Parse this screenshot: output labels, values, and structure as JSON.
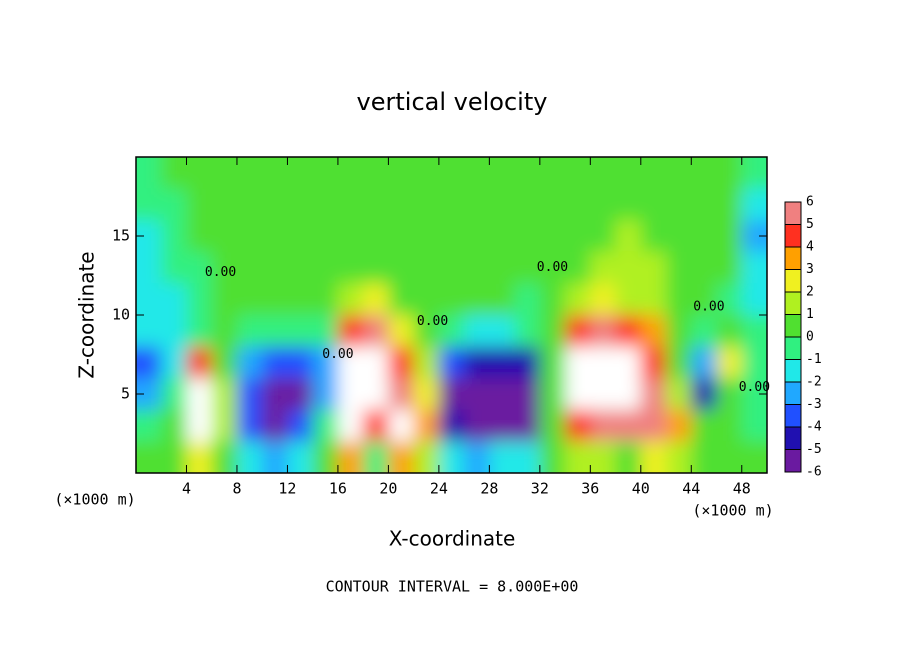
{
  "chart_data": {
    "type": "heatmap",
    "title": "vertical velocity",
    "x_label": "X-coordinate",
    "y_label": "Z-coordinate",
    "x_unit": "(×1000 m)",
    "y_unit": "(×1000 m)",
    "footer": "CONTOUR INTERVAL = 8.000E+00",
    "xlim": [
      0,
      50
    ],
    "ylim": [
      0,
      20
    ],
    "xticks": [
      4,
      8,
      12,
      16,
      20,
      24,
      28,
      32,
      36,
      40,
      44,
      48
    ],
    "yticks": [
      5,
      10,
      15
    ],
    "x": [
      1,
      3,
      5,
      7,
      9,
      11,
      13,
      15,
      17,
      19,
      21,
      23,
      25,
      27,
      29,
      31,
      33,
      35,
      37,
      39,
      41,
      43,
      45,
      47,
      49
    ],
    "y": [
      19,
      17,
      15,
      13,
      11,
      9,
      7,
      5,
      3,
      1
    ],
    "z": [
      [
        -0.5,
        0,
        0,
        0,
        0,
        0,
        0,
        0,
        0,
        0,
        0,
        0,
        0,
        0,
        0,
        0,
        0,
        0,
        0,
        0,
        0,
        0,
        0,
        0,
        -1
      ],
      [
        -1,
        -0.5,
        0,
        0,
        0,
        0,
        0,
        0,
        0,
        0,
        0,
        0,
        0,
        0,
        0,
        0,
        0,
        0,
        0,
        0,
        0,
        0,
        0,
        0,
        -2
      ],
      [
        -2,
        -1,
        0,
        0,
        0,
        0,
        0,
        0,
        0,
        0,
        0,
        0,
        0,
        0,
        0,
        0,
        0,
        0,
        0.5,
        1,
        0.5,
        0,
        0,
        0,
        -3
      ],
      [
        -2,
        -1,
        -0.5,
        0,
        0,
        0,
        0,
        0,
        0,
        0,
        0,
        0,
        0,
        0,
        0,
        0,
        0,
        0.5,
        1,
        1,
        1,
        0,
        0,
        0,
        -2
      ],
      [
        -2,
        -1.5,
        -1,
        0,
        0,
        0,
        0,
        0,
        1,
        2,
        0.5,
        0,
        0,
        0,
        0,
        -0.5,
        0,
        1.5,
        2,
        1.5,
        1,
        0,
        0,
        -0.5,
        -2
      ],
      [
        -2,
        -1.5,
        -1,
        0,
        -0.5,
        -1,
        -1,
        -0.5,
        4,
        5,
        2,
        0,
        -1,
        -1.5,
        -1.5,
        -1,
        0,
        4,
        5,
        4,
        3,
        0,
        -1,
        0,
        -1
      ],
      [
        -4,
        -2,
        4,
        0,
        -3,
        -4,
        -4,
        -3,
        6,
        6,
        4,
        1,
        -4,
        -5,
        -5,
        -5,
        0,
        6,
        6,
        6,
        4,
        0,
        -3,
        2,
        -1
      ],
      [
        -3,
        -1,
        6,
        1,
        -4,
        -6,
        -6,
        -3,
        6,
        6,
        5,
        2,
        -6,
        -6,
        -6,
        -6,
        0,
        6,
        6,
        6,
        5,
        1,
        -5,
        0,
        -1
      ],
      [
        -1,
        0,
        6,
        1,
        -4,
        -6,
        -4,
        -1,
        6,
        4,
        6,
        3,
        -5,
        -6,
        -6,
        -6,
        0,
        4,
        5,
        5,
        5,
        3,
        0,
        0,
        -1
      ],
      [
        0,
        0,
        2,
        0,
        -2,
        -3,
        -2,
        0,
        3,
        -1,
        3,
        1,
        -2,
        -3,
        -2,
        -2,
        0,
        1,
        1,
        0,
        2,
        1,
        0,
        0,
        0
      ]
    ],
    "colorbar": {
      "ticks": [
        -6,
        -5,
        -4,
        -3,
        -2,
        -1,
        0,
        1,
        2,
        3,
        4,
        5,
        6
      ],
      "colors": [
        "#6a1aa0",
        "#2010b0",
        "#2050ff",
        "#20a8ff",
        "#20e8e8",
        "#30f080",
        "#50e030",
        "#b0f020",
        "#f0f020",
        "#ffa000",
        "#ff3020",
        "#f08080"
      ],
      "over_color": "#ffffff"
    },
    "contour_labels": [
      {
        "text": "0.00",
        "x": 6.7,
        "y": 12.7
      },
      {
        "text": "0.00",
        "x": 23.5,
        "y": 9.6
      },
      {
        "text": "0.00",
        "x": 16,
        "y": 7.5
      },
      {
        "text": "0.00",
        "x": 33,
        "y": 13
      },
      {
        "text": "0.00",
        "x": 45.4,
        "y": 10.5
      },
      {
        "text": "0.00",
        "x": 49,
        "y": 5.4
      }
    ]
  }
}
